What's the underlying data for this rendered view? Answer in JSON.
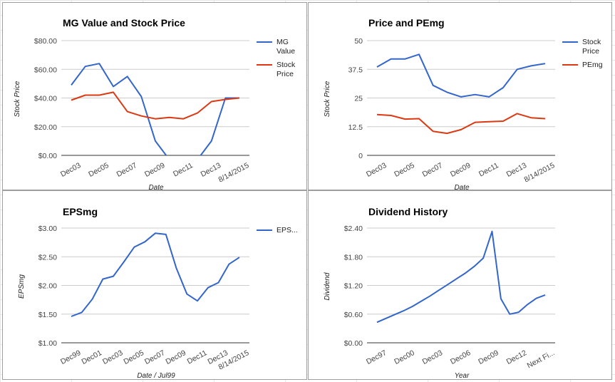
{
  "chart_data": [
    {
      "type": "line",
      "title": "MG Value and Stock Price",
      "xlabel": "Date",
      "ylabel": "Stock Price",
      "ylim": [
        0,
        80
      ],
      "yticks": [
        "$0.00",
        "$20.00",
        "$40.00",
        "$60.00",
        "$80.00"
      ],
      "ytick_values": [
        0,
        20,
        40,
        60,
        80
      ],
      "x_tick_labels": [
        "Dec03",
        "Dec05",
        "Dec07",
        "Dec09",
        "Dec11",
        "Dec13",
        "8/14/2015"
      ],
      "x": [
        2003,
        2004,
        2005,
        2006,
        2007,
        2008,
        2009,
        2010,
        2011,
        2012,
        2013,
        2014,
        2015
      ],
      "series": [
        {
          "name": "MG\nValue",
          "color": "#3366cc",
          "values": [
            49,
            62,
            64,
            48,
            55,
            41,
            10,
            -3,
            -3,
            -3,
            10,
            40,
            40
          ]
        },
        {
          "name": "Stock\nPrice",
          "color": "#dc3912",
          "values": [
            38.5,
            42,
            42,
            44,
            30.5,
            27.5,
            25.5,
            26.5,
            25.5,
            29.5,
            37.5,
            39,
            40
          ]
        }
      ],
      "legend": "right",
      "grid": true
    },
    {
      "type": "line",
      "title": "Price and PEmg",
      "xlabel": "Date",
      "ylabel": "Stock Price",
      "ylim": [
        0,
        50
      ],
      "yticks": [
        "0",
        "12.5",
        "25",
        "37.5",
        "50"
      ],
      "ytick_values": [
        0,
        12.5,
        25,
        37.5,
        50
      ],
      "x_tick_labels": [
        "Dec03",
        "Dec05",
        "Dec07",
        "Dec09",
        "Dec11",
        "Dec13",
        "8/14/2015"
      ],
      "x": [
        2003,
        2004,
        2005,
        2006,
        2007,
        2008,
        2009,
        2010,
        2011,
        2012,
        2013,
        2014,
        2015
      ],
      "series": [
        {
          "name": "Stock\nPrice",
          "color": "#3366cc",
          "values": [
            38.5,
            42,
            42,
            44,
            30.5,
            27.5,
            25.5,
            26.5,
            25.5,
            29.5,
            37.5,
            39,
            40
          ]
        },
        {
          "name": "PEmg",
          "color": "#dc3912",
          "values": [
            17.8,
            17.4,
            15.8,
            16.0,
            10.5,
            9.6,
            11.2,
            14.4,
            14.7,
            14.9,
            18.2,
            16.4,
            16.0
          ]
        }
      ],
      "legend": "right",
      "grid": true
    },
    {
      "type": "line",
      "title": "EPSmg",
      "xlabel": "Date / Jul99",
      "ylabel": "EPSmg",
      "ylim": [
        1.0,
        3.0
      ],
      "yticks": [
        "$1.00",
        "$1.50",
        "$2.00",
        "$2.50",
        "$3.00"
      ],
      "ytick_values": [
        1.0,
        1.5,
        2.0,
        2.5,
        3.0
      ],
      "x_tick_labels": [
        "Dec99",
        "Dec01",
        "Dec03",
        "Dec05",
        "Dec07",
        "Dec09",
        "Dec11",
        "Dec13",
        "8/14/2015"
      ],
      "x": [
        1999.5,
        2000,
        2001,
        2002,
        2003,
        2004,
        2005,
        2006,
        2007,
        2008,
        2009,
        2010,
        2011,
        2012,
        2013,
        2014,
        2015
      ],
      "series": [
        {
          "name": "EPS...",
          "color": "#3366cc",
          "values": [
            1.46,
            1.53,
            1.76,
            2.11,
            2.16,
            2.41,
            2.67,
            2.76,
            2.91,
            2.89,
            2.3,
            1.85,
            1.73,
            1.96,
            2.05,
            2.37,
            2.49
          ]
        }
      ],
      "legend": "right",
      "grid": true
    },
    {
      "type": "line",
      "title": "Dividend History",
      "xlabel": "Year",
      "ylabel": "Dividend",
      "ylim": [
        0,
        2.4
      ],
      "yticks": [
        "$0.00",
        "$0.60",
        "$1.20",
        "$1.80",
        "$2.40"
      ],
      "ytick_values": [
        0,
        0.6,
        1.2,
        1.8,
        2.4
      ],
      "x_tick_labels": [
        "Dec97",
        "Dec00",
        "Dec03",
        "Dec06",
        "Dec09",
        "Dec12",
        "Next Fi..."
      ],
      "x": [
        1996,
        1997,
        1998,
        1999,
        2000,
        2001,
        2002,
        2003,
        2004,
        2005,
        2006,
        2007,
        2008,
        2009,
        2010,
        2011,
        2012,
        2013,
        2014,
        2015
      ],
      "series": [
        {
          "name": "",
          "color": "#3366cc",
          "values": [
            0.43,
            0.51,
            0.59,
            0.67,
            0.76,
            0.87,
            0.98,
            1.1,
            1.22,
            1.34,
            1.46,
            1.6,
            1.77,
            2.33,
            0.92,
            0.6,
            0.64,
            0.8,
            0.93,
            1.0
          ]
        }
      ],
      "legend": "none",
      "grid": true
    }
  ]
}
